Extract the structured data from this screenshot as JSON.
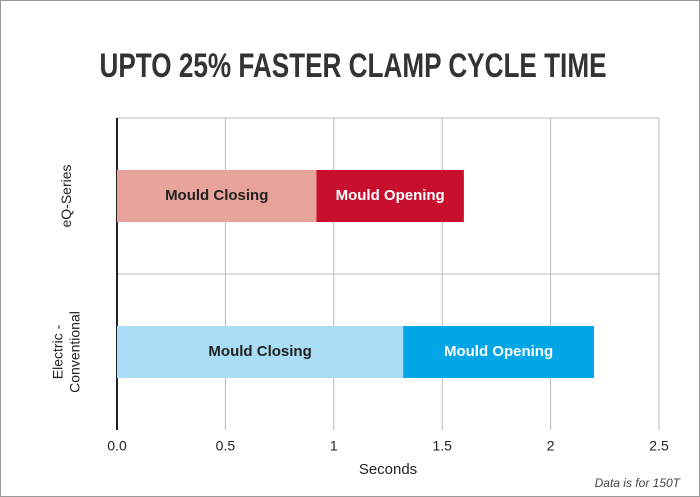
{
  "chart_data": {
    "type": "stacked-barh",
    "title": "UPTO 25% FASTER CLAMP CYCLE TIME",
    "xlabel": "Seconds",
    "footnote": "Data is for 150T",
    "categories": [
      "eQ-Series",
      "Electric -\nConventional"
    ],
    "series": [
      {
        "name": "Mould Closing",
        "colors": [
          "#e8a39b",
          "#a8ddf5"
        ],
        "label_color": "#222222",
        "values": [
          0.92,
          1.32
        ]
      },
      {
        "name": "Mould Opening",
        "colors": [
          "#c8102e",
          "#00a6e6"
        ],
        "label_color": "#ffffff",
        "values": [
          0.68,
          0.88
        ]
      }
    ],
    "xlim": [
      0,
      2.5
    ],
    "xticks": [
      {
        "value": 0,
        "label": "0.0"
      },
      0.5,
      1,
      1.5,
      2,
      2.5
    ],
    "grid": true
  }
}
